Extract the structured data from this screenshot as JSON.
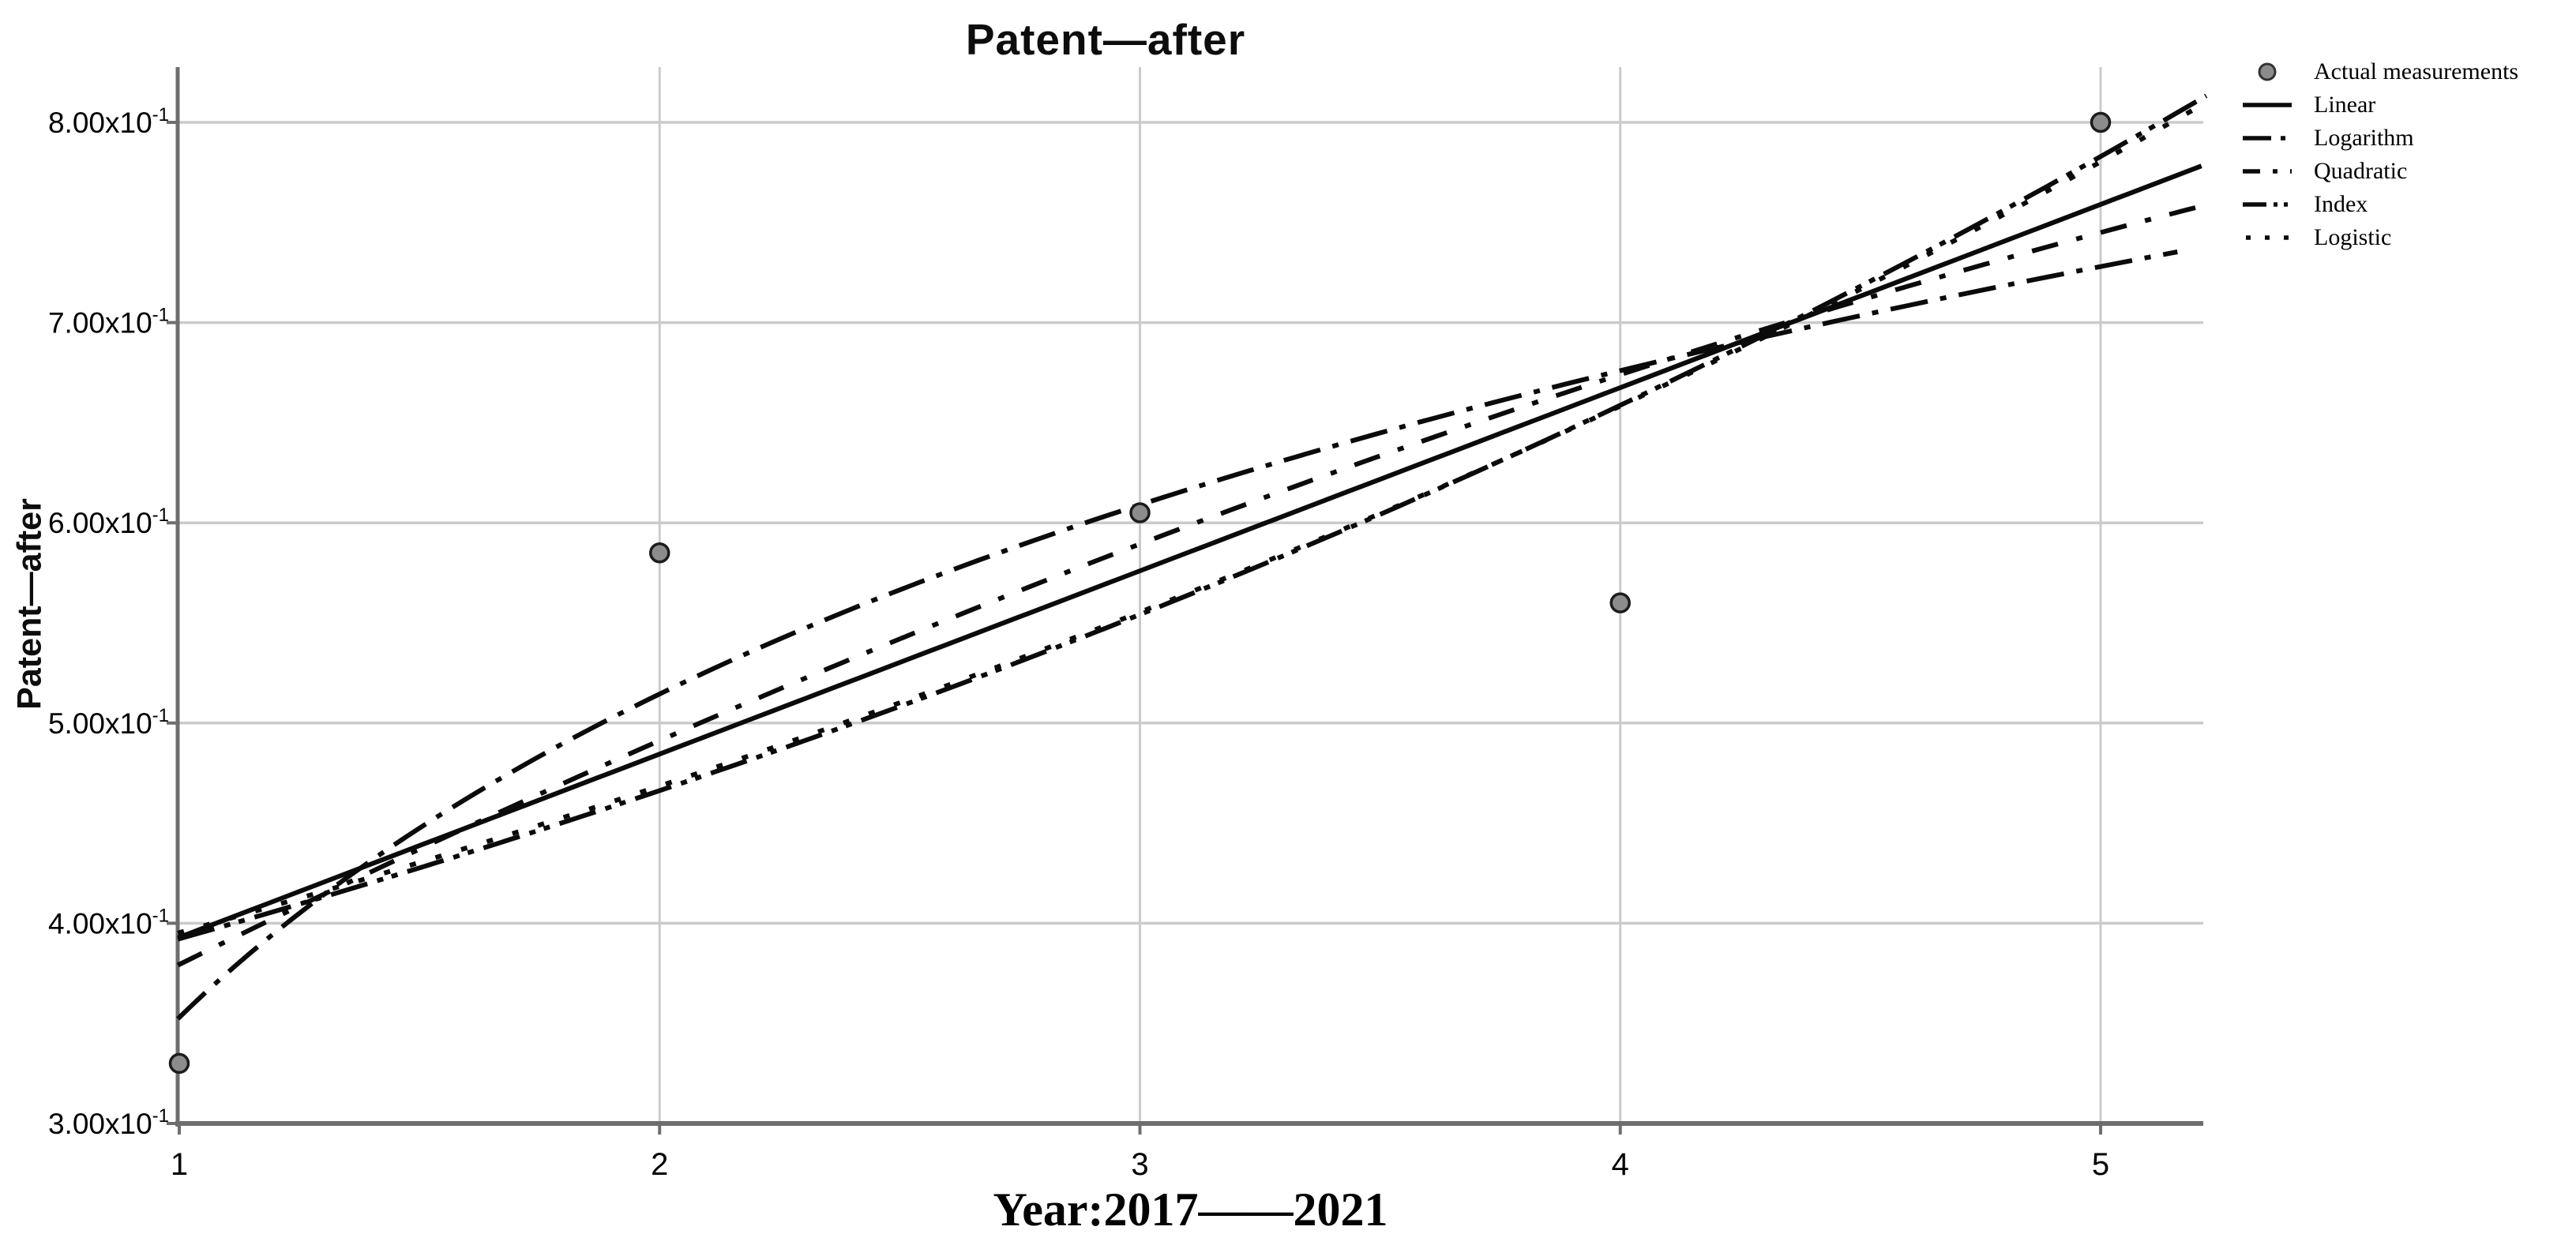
{
  "title": "Patent—after",
  "y_axis": {
    "label": "Patent—after",
    "ticks": [
      {
        "text": "8.00x10",
        "sup": "-1",
        "value": 0.8
      },
      {
        "text": "7.00x10",
        "sup": "-1",
        "value": 0.7
      },
      {
        "text": "6.00x10",
        "sup": "-1",
        "value": 0.6
      },
      {
        "text": "5.00x10",
        "sup": "-1",
        "value": 0.5
      },
      {
        "text": "4.00x10",
        "sup": "-1",
        "value": 0.4
      },
      {
        "text": "3.00x10",
        "sup": "-1",
        "value": 0.3
      }
    ]
  },
  "x_axis": {
    "label": "Year:2017——2021",
    "ticks": [
      {
        "label": "1",
        "value": 1
      },
      {
        "label": "2",
        "value": 2
      },
      {
        "label": "3",
        "value": 3
      },
      {
        "label": "4",
        "value": 4
      },
      {
        "label": "5",
        "value": 5
      }
    ]
  },
  "legend": {
    "items": [
      {
        "label": "Actual measurements",
        "sample": "point"
      },
      {
        "label": "Linear",
        "sample": "solid"
      },
      {
        "label": "Logarithm",
        "sample": "dashdot"
      },
      {
        "label": "Quadratic",
        "sample": "dash"
      },
      {
        "label": "Index",
        "sample": "dashdotdot"
      },
      {
        "label": "Logistic",
        "sample": "dotted"
      }
    ]
  },
  "colors": {
    "line": "#0b0b0b",
    "grid": "#cbcbcb",
    "axis": "#6e6e6e",
    "marker_fill": "#8c8c8c",
    "marker_stroke": "#1c1c1c",
    "text": "#000000"
  },
  "chart_data": {
    "type": "line",
    "title": "Patent—after",
    "xlabel": "Year:2017——2021",
    "ylabel": "Patent—after",
    "xlim": [
      1,
      5.21
    ],
    "ylim": [
      0.3,
      0.83
    ],
    "x_ticks": [
      1,
      2,
      3,
      4,
      5
    ],
    "y_ticks": [
      0.3,
      0.4,
      0.5,
      0.6,
      0.7,
      0.8
    ],
    "y_tick_style": "value x 10^-1, e.g. 8.00x10-1",
    "grid": true,
    "legend_position": "top-right-outside",
    "scatter": {
      "name": "Actual measurements",
      "points": [
        [
          1,
          0.33
        ],
        [
          2,
          0.585
        ],
        [
          3,
          0.605
        ],
        [
          4,
          0.56
        ],
        [
          5,
          0.8
        ]
      ]
    },
    "series": [
      {
        "name": "Linear",
        "model": "linear",
        "params": {
          "a": 0.3015,
          "b": 0.0915
        },
        "x_range": [
          0.997,
          5.21
        ],
        "dash": "solid",
        "values_at_x_1_to_5": [
          0.393,
          0.485,
          0.576,
          0.668,
          0.759
        ]
      },
      {
        "name": "Logarithm",
        "model": "log",
        "params": {
          "a": 0.353,
          "b": 0.233
        },
        "x_range": [
          0.997,
          5.16
        ],
        "dash": "dashdot",
        "values_at_x_1_to_5": [
          0.353,
          0.514,
          0.609,
          0.676,
          0.728
        ]
      },
      {
        "name": "Quadratic",
        "model": "quadratic",
        "params": {
          "c0": 0.254,
          "c1": 0.1322,
          "c2": -0.0068
        },
        "x_range": [
          0.997,
          5.21
        ],
        "dash": "dash",
        "values_at_x_1_to_5": [
          0.379,
          0.491,
          0.589,
          0.674,
          0.745
        ]
      },
      {
        "name": "Index",
        "model": "exponential",
        "params": {
          "a": 0.33,
          "b": 0.1728
        },
        "x_range": [
          0.997,
          5.22
        ],
        "dash": "dashdotdot",
        "values_at_x_1_to_5": [
          0.392,
          0.466,
          0.554,
          0.659,
          0.783
        ]
      },
      {
        "name": "Logistic",
        "model": "exponential",
        "params": {
          "a": 0.3335,
          "b": 0.17
        },
        "x_range": [
          0.997,
          5.19
        ],
        "dash": "dotted",
        "values_at_x_1_to_5": [
          0.395,
          0.468,
          0.555,
          0.658,
          0.781
        ]
      }
    ]
  }
}
